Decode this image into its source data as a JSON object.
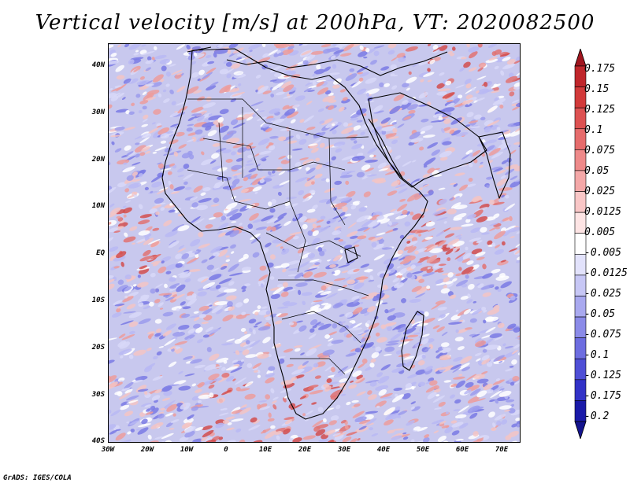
{
  "title": "Vertical velocity [m/s] at 200hPa, VT: 2020082500",
  "footer": "GrADS: IGES/COLA",
  "map": {
    "lat_labels": [
      "40N",
      "30N",
      "20N",
      "10N",
      "EQ",
      "10S",
      "20S",
      "30S",
      "40S"
    ],
    "lon_labels": [
      "30W",
      "20W",
      "10W",
      "0",
      "10E",
      "20E",
      "30E",
      "40E",
      "50E",
      "60E",
      "70E"
    ],
    "lon_range": [
      -30,
      75
    ],
    "lat_range": [
      -40,
      45
    ]
  },
  "colorbar": {
    "labels": [
      "0.175",
      "0.15",
      "0.125",
      "0.1",
      "0.075",
      "0.05",
      "0.025",
      "0.0125",
      "0.005",
      "-0.005",
      "-0.0125",
      "-0.025",
      "-0.05",
      "-0.075",
      "-0.1",
      "-0.125",
      "-0.175",
      "-0.2"
    ],
    "colors": [
      "#a0151e",
      "#c0262b",
      "#d23a3a",
      "#dd5252",
      "#e66c6c",
      "#ee8a8a",
      "#f4a8a8",
      "#f9c7c7",
      "#fde4e4",
      "#ffffff",
      "#e2e2fb",
      "#c7c7f5",
      "#a9a9ef",
      "#8b8be8",
      "#6d6de0",
      "#4f4fd6",
      "#3232c7",
      "#1a1aa8",
      "#14148f"
    ]
  }
}
